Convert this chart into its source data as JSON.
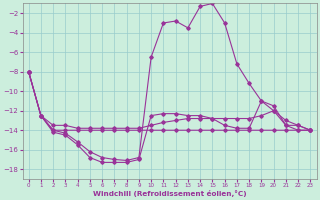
{
  "x": [
    0,
    1,
    2,
    3,
    4,
    5,
    6,
    7,
    8,
    9,
    10,
    11,
    12,
    13,
    14,
    15,
    16,
    17,
    18,
    19,
    20,
    21,
    22,
    23
  ],
  "line_bottom1": [
    -8.0,
    -12.5,
    -14.0,
    -14.0,
    -14.0,
    -14.0,
    -14.0,
    -14.0,
    -14.0,
    -14.0,
    -14.0,
    -14.0,
    -14.0,
    -14.0,
    -14.0,
    -14.0,
    -14.0,
    -14.0,
    -14.0,
    -14.0,
    -14.0,
    -14.0,
    -14.0,
    -14.0
  ],
  "line_bottom2": [
    -8.0,
    -12.5,
    -13.5,
    -13.5,
    -13.8,
    -13.8,
    -13.8,
    -13.8,
    -13.8,
    -13.8,
    -13.5,
    -13.2,
    -13.0,
    -12.8,
    -12.8,
    -12.8,
    -12.8,
    -12.8,
    -12.8,
    -12.5,
    -12.0,
    -13.0,
    -13.5,
    -14.0
  ],
  "line_top1": [
    -8.0,
    -12.5,
    -14.2,
    -14.5,
    -15.5,
    -16.8,
    -17.3,
    -17.3,
    -17.3,
    -17.0,
    -12.5,
    -12.3,
    -12.3,
    -12.5,
    -12.5,
    -12.8,
    -13.5,
    -13.8,
    -13.8,
    -11.0,
    -12.0,
    -13.5,
    -14.0,
    -14.0
  ],
  "line_top2": [
    -8.0,
    -12.5,
    -14.0,
    -14.3,
    -15.2,
    -16.2,
    -16.8,
    -17.0,
    -17.1,
    -16.8,
    -6.5,
    -3.0,
    -2.8,
    -3.5,
    -1.3,
    -1.0,
    -3.0,
    -7.2,
    -9.2,
    -11.0,
    -11.5,
    -13.5,
    -13.5,
    -14.0
  ],
  "ylim": [
    -19,
    -1
  ],
  "xlim": [
    -0.5,
    23.5
  ],
  "yticks": [
    -18,
    -16,
    -14,
    -12,
    -10,
    -8,
    -6,
    -4,
    -2
  ],
  "xticks": [
    0,
    1,
    2,
    3,
    4,
    5,
    6,
    7,
    8,
    9,
    10,
    11,
    12,
    13,
    14,
    15,
    16,
    17,
    18,
    19,
    20,
    21,
    22,
    23
  ],
  "xlabel": "Windchill (Refroidissement éolien,°C)",
  "bg_color": "#cceedd",
  "grid_color": "#99cccc",
  "line_color": "#993399",
  "spine_color": "#888888"
}
